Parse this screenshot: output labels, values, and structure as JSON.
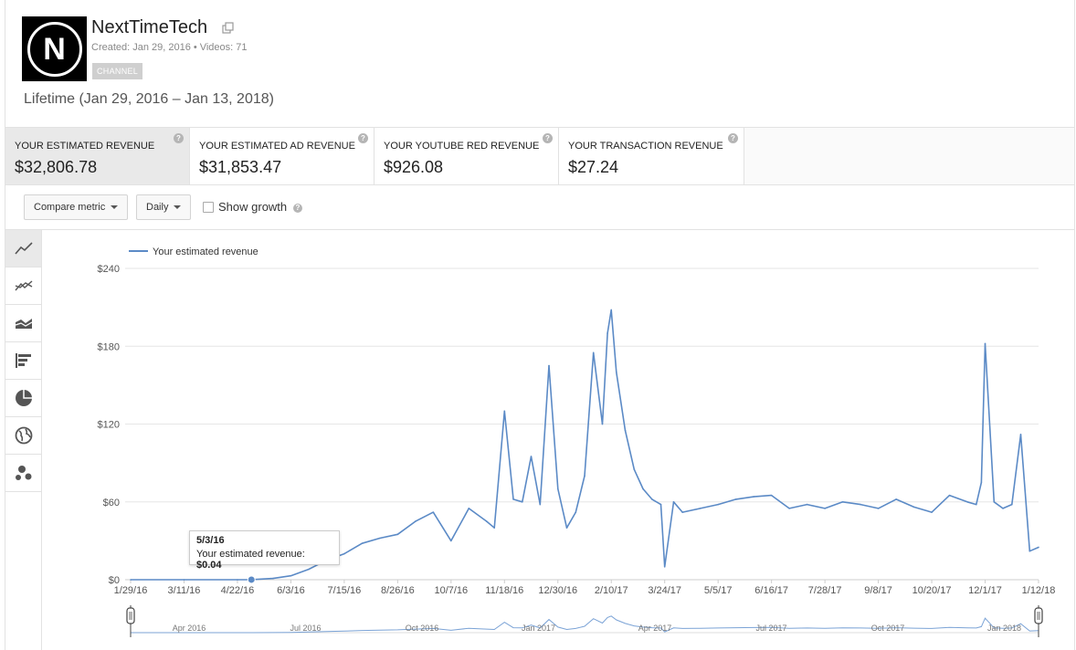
{
  "channel": {
    "name": "NextTimeTech",
    "avatar_letter": "N",
    "created": "Created: Jan 29, 2016",
    "separator": "•",
    "videos": "Videos: 71",
    "badge": "CHANNEL"
  },
  "period_label": "Lifetime (Jan 29, 2016 – Jan 13, 2018)",
  "metrics": [
    {
      "label": "YOUR ESTIMATED REVENUE",
      "value": "$32,806.78",
      "active": true
    },
    {
      "label": "YOUR ESTIMATED AD REVENUE",
      "value": "$31,853.47",
      "active": false
    },
    {
      "label": "YOUR YOUTUBE RED REVENUE",
      "value": "$926.08",
      "active": false
    },
    {
      "label": "YOUR TRANSACTION REVENUE",
      "value": "$27.24",
      "active": false
    }
  ],
  "help_glyph": "?",
  "controls": {
    "compare_metric": "Compare metric",
    "granularity": "Daily",
    "show_growth": "Show growth"
  },
  "sidebar_icons": [
    "line-chart-icon",
    "multi-line-chart-icon",
    "stacked-area-chart-icon",
    "bar-chart-icon",
    "pie-chart-icon",
    "globe-map-icon",
    "bubble-chart-icon"
  ],
  "tooltip": {
    "date": "5/3/16",
    "label": "Your estimated revenue: ",
    "value": "$0.04"
  },
  "colors": {
    "line": "#5b8ac6",
    "navigator_line": "#7ba3d6",
    "grid": "#e6e6e6",
    "axis_text": "#555555"
  },
  "chart_data": {
    "type": "line",
    "legend": "Your estimated revenue",
    "legend_position": "top-left",
    "y_ticks": [
      "$0",
      "$60",
      "$120",
      "$180",
      "$240"
    ],
    "ylim": [
      0,
      240
    ],
    "x_ticks": [
      "1/29/16",
      "3/11/16",
      "4/22/16",
      "6/3/16",
      "7/15/16",
      "8/26/16",
      "10/7/16",
      "11/18/16",
      "12/30/16",
      "2/10/17",
      "3/24/17",
      "5/5/17",
      "6/16/17",
      "7/28/17",
      "9/8/17",
      "10/20/17",
      "12/1/17",
      "1/12/18"
    ],
    "navigator_ticks": [
      "Apr 2016",
      "Jul 2016",
      "Oct 2016",
      "Jan 2017",
      "Apr 2017",
      "Jul 2017",
      "Oct 2017",
      "Jan 2018"
    ],
    "grid": true,
    "series": [
      {
        "name": "Your estimated revenue",
        "x": [
          "1/29/16",
          "3/11/16",
          "4/22/16",
          "5/3/16",
          "5/20/16",
          "6/3/16",
          "6/17/16",
          "7/1/16",
          "7/15/16",
          "7/29/16",
          "8/12/16",
          "8/26/16",
          "9/9/16",
          "9/23/16",
          "10/7/16",
          "10/21/16",
          "11/4/16",
          "11/10/16",
          "11/18/16",
          "11/25/16",
          "12/2/16",
          "12/9/16",
          "12/16/16",
          "12/23/16",
          "12/30/16",
          "1/6/17",
          "1/13/17",
          "1/20/17",
          "1/27/17",
          "2/3/17",
          "2/7/17",
          "2/10/17",
          "2/14/17",
          "2/21/17",
          "2/28/17",
          "3/7/17",
          "3/14/17",
          "3/21/17",
          "3/24/17",
          "3/31/17",
          "4/7/17",
          "4/21/17",
          "5/5/17",
          "5/19/17",
          "6/2/17",
          "6/16/17",
          "6/30/17",
          "7/14/17",
          "7/28/17",
          "8/11/17",
          "8/25/17",
          "9/8/17",
          "9/22/17",
          "10/6/17",
          "10/20/17",
          "11/3/17",
          "11/17/17",
          "11/24/17",
          "11/28/17",
          "12/1/17",
          "12/8/17",
          "12/15/17",
          "12/22/17",
          "12/29/17",
          "1/5/18",
          "1/12/18"
        ],
        "y": [
          0,
          0,
          0,
          0.04,
          1,
          3,
          8,
          15,
          20,
          28,
          32,
          35,
          45,
          52,
          30,
          55,
          45,
          40,
          130,
          62,
          60,
          95,
          58,
          165,
          70,
          40,
          52,
          80,
          175,
          120,
          190,
          208,
          160,
          115,
          85,
          70,
          62,
          58,
          10,
          60,
          52,
          55,
          58,
          62,
          64,
          65,
          55,
          58,
          55,
          60,
          58,
          55,
          62,
          56,
          52,
          65,
          60,
          58,
          75,
          182,
          60,
          55,
          58,
          112,
          22,
          25
        ]
      }
    ]
  }
}
